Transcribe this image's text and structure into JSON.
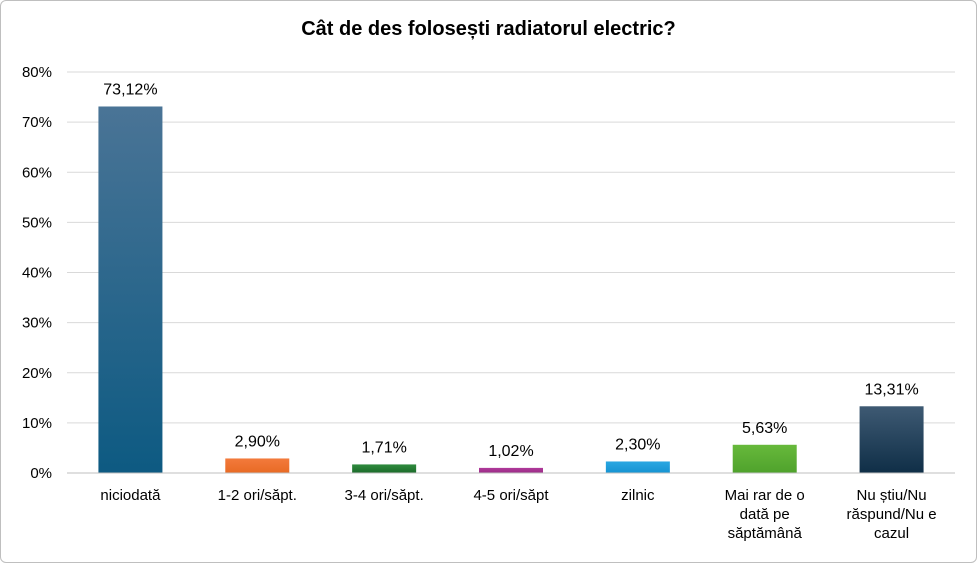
{
  "chart_data": {
    "type": "bar",
    "title": "Cât de des folosești radiatorul electric?",
    "categories": [
      [
        "niciodată"
      ],
      [
        "1-2 ori/săpt."
      ],
      [
        "3-4 ori/săpt."
      ],
      [
        "4-5 ori/săpt"
      ],
      [
        "zilnic"
      ],
      [
        "Mai rar de o",
        "dată pe",
        "săptămână"
      ],
      [
        "Nu știu/Nu",
        "răspund/Nu e",
        "cazul"
      ]
    ],
    "values": [
      73.12,
      2.9,
      1.71,
      1.02,
      2.3,
      5.63,
      13.31
    ],
    "value_labels": [
      "73,12%",
      "2,90%",
      "1,71%",
      "1,02%",
      "2,30%",
      "5,63%",
      "13,31%"
    ],
    "y_ticks": [
      0,
      10,
      20,
      30,
      40,
      50,
      60,
      70,
      80
    ],
    "y_tick_labels": [
      "0%",
      "10%",
      "20%",
      "30%",
      "40%",
      "50%",
      "60%",
      "70%",
      "80%"
    ],
    "ylim": [
      0,
      80
    ],
    "grid": true,
    "legend": "none",
    "colors": [
      [
        "#4a7496",
        "#0d5a82"
      ],
      [
        "#f37a3c",
        "#e86a24"
      ],
      [
        "#2e8b3e",
        "#1c6b2a"
      ],
      [
        "#b03a9a",
        "#9a2b86"
      ],
      [
        "#2aa7e2",
        "#1593d2"
      ],
      [
        "#67b93b",
        "#4fa22c"
      ],
      [
        "#3e5a73",
        "#0f2e47"
      ]
    ]
  }
}
